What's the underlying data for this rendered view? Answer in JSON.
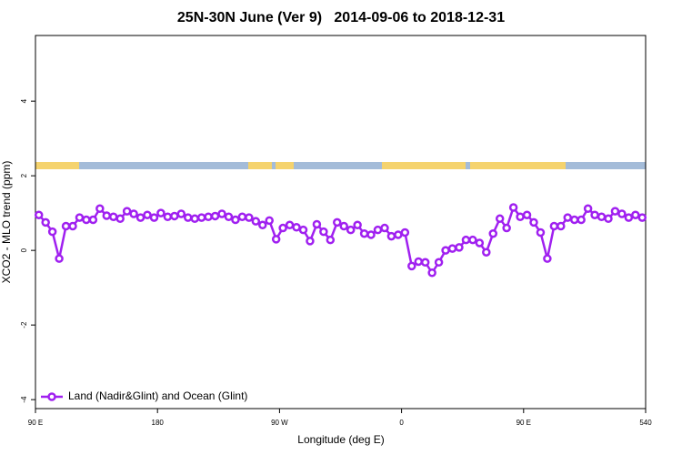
{
  "chart_data": {
    "type": "line",
    "title": "25N-30N June (Ver 9)   2014-09-06 to 2018-12-31",
    "x_label": "Longitude (deg E)",
    "y_label": "XCO2 - MLO trend (ppm)",
    "x": [
      92.5,
      97.5,
      102.5,
      107.5,
      112.5,
      117.5,
      122.5,
      127.5,
      132.5,
      137.5,
      142.5,
      147.5,
      152.5,
      157.5,
      162.5,
      167.5,
      172.5,
      177.5,
      182.5,
      187.5,
      192.5,
      197.5,
      202.5,
      207.5,
      212.5,
      217.5,
      222.5,
      227.5,
      232.5,
      237.5,
      242.5,
      247.5,
      252.5,
      257.5,
      262.5,
      267.5,
      272.5,
      277.5,
      282.5,
      287.5,
      292.5,
      297.5,
      302.5,
      307.5,
      312.5,
      317.5,
      322.5,
      327.5,
      332.5,
      337.5,
      342.5,
      347.5,
      352.5,
      357.5,
      362.5,
      367.5,
      372.5,
      377.5,
      382.5,
      387.5,
      392.5,
      397.5,
      402.5,
      407.5,
      412.5,
      417.5,
      422.5,
      427.5,
      432.5,
      437.5,
      442.5,
      447.5,
      452.5,
      457.5,
      462.5,
      467.5,
      472.5,
      477.5,
      482.5,
      487.5,
      492.5,
      497.5,
      502.5,
      507.5,
      512.5,
      517.5,
      522.5,
      527.5,
      532.5,
      537.5
    ],
    "series": [
      {
        "name": "Land (Nadir&Glint) and Ocean (Glint)",
        "color": "#a020f0",
        "values": [
          0.95,
          0.75,
          0.5,
          -0.22,
          0.65,
          0.65,
          0.88,
          0.82,
          0.82,
          1.12,
          0.93,
          0.9,
          0.85,
          1.05,
          0.98,
          0.88,
          0.95,
          0.88,
          1.0,
          0.9,
          0.92,
          0.98,
          0.88,
          0.85,
          0.88,
          0.9,
          0.92,
          0.98,
          0.9,
          0.82,
          0.9,
          0.88,
          0.78,
          0.68,
          0.8,
          0.3,
          0.6,
          0.68,
          0.62,
          0.55,
          0.25,
          0.7,
          0.5,
          0.28,
          0.75,
          0.65,
          0.55,
          0.68,
          0.45,
          0.42,
          0.55,
          0.6,
          0.38,
          0.42,
          0.48,
          -0.42,
          -0.3,
          -0.32,
          -0.6,
          -0.32,
          0.0,
          0.05,
          0.08,
          0.28,
          0.28,
          0.2,
          -0.05,
          0.45,
          0.85,
          0.6,
          1.15,
          0.9,
          0.95,
          0.75,
          0.48,
          -0.22,
          0.65,
          0.65,
          0.88,
          0.82,
          0.82,
          1.12,
          0.95,
          0.9,
          0.85,
          1.05,
          0.98,
          0.88,
          0.95,
          0.88
        ]
      }
    ],
    "xlim": [
      90,
      540
    ],
    "xticks": [
      {
        "value": 90,
        "label": "90 E"
      },
      180,
      {
        "value": 270,
        "label": "90 W"
      },
      {
        "value": 360,
        "label": "0"
      },
      {
        "value": 450,
        "label": "90 E"
      },
      540
    ],
    "ylim": [
      -4.24,
      5.76
    ],
    "yticks": [
      -4,
      -2,
      0,
      2,
      4
    ],
    "legend": "bottom-left"
  }
}
